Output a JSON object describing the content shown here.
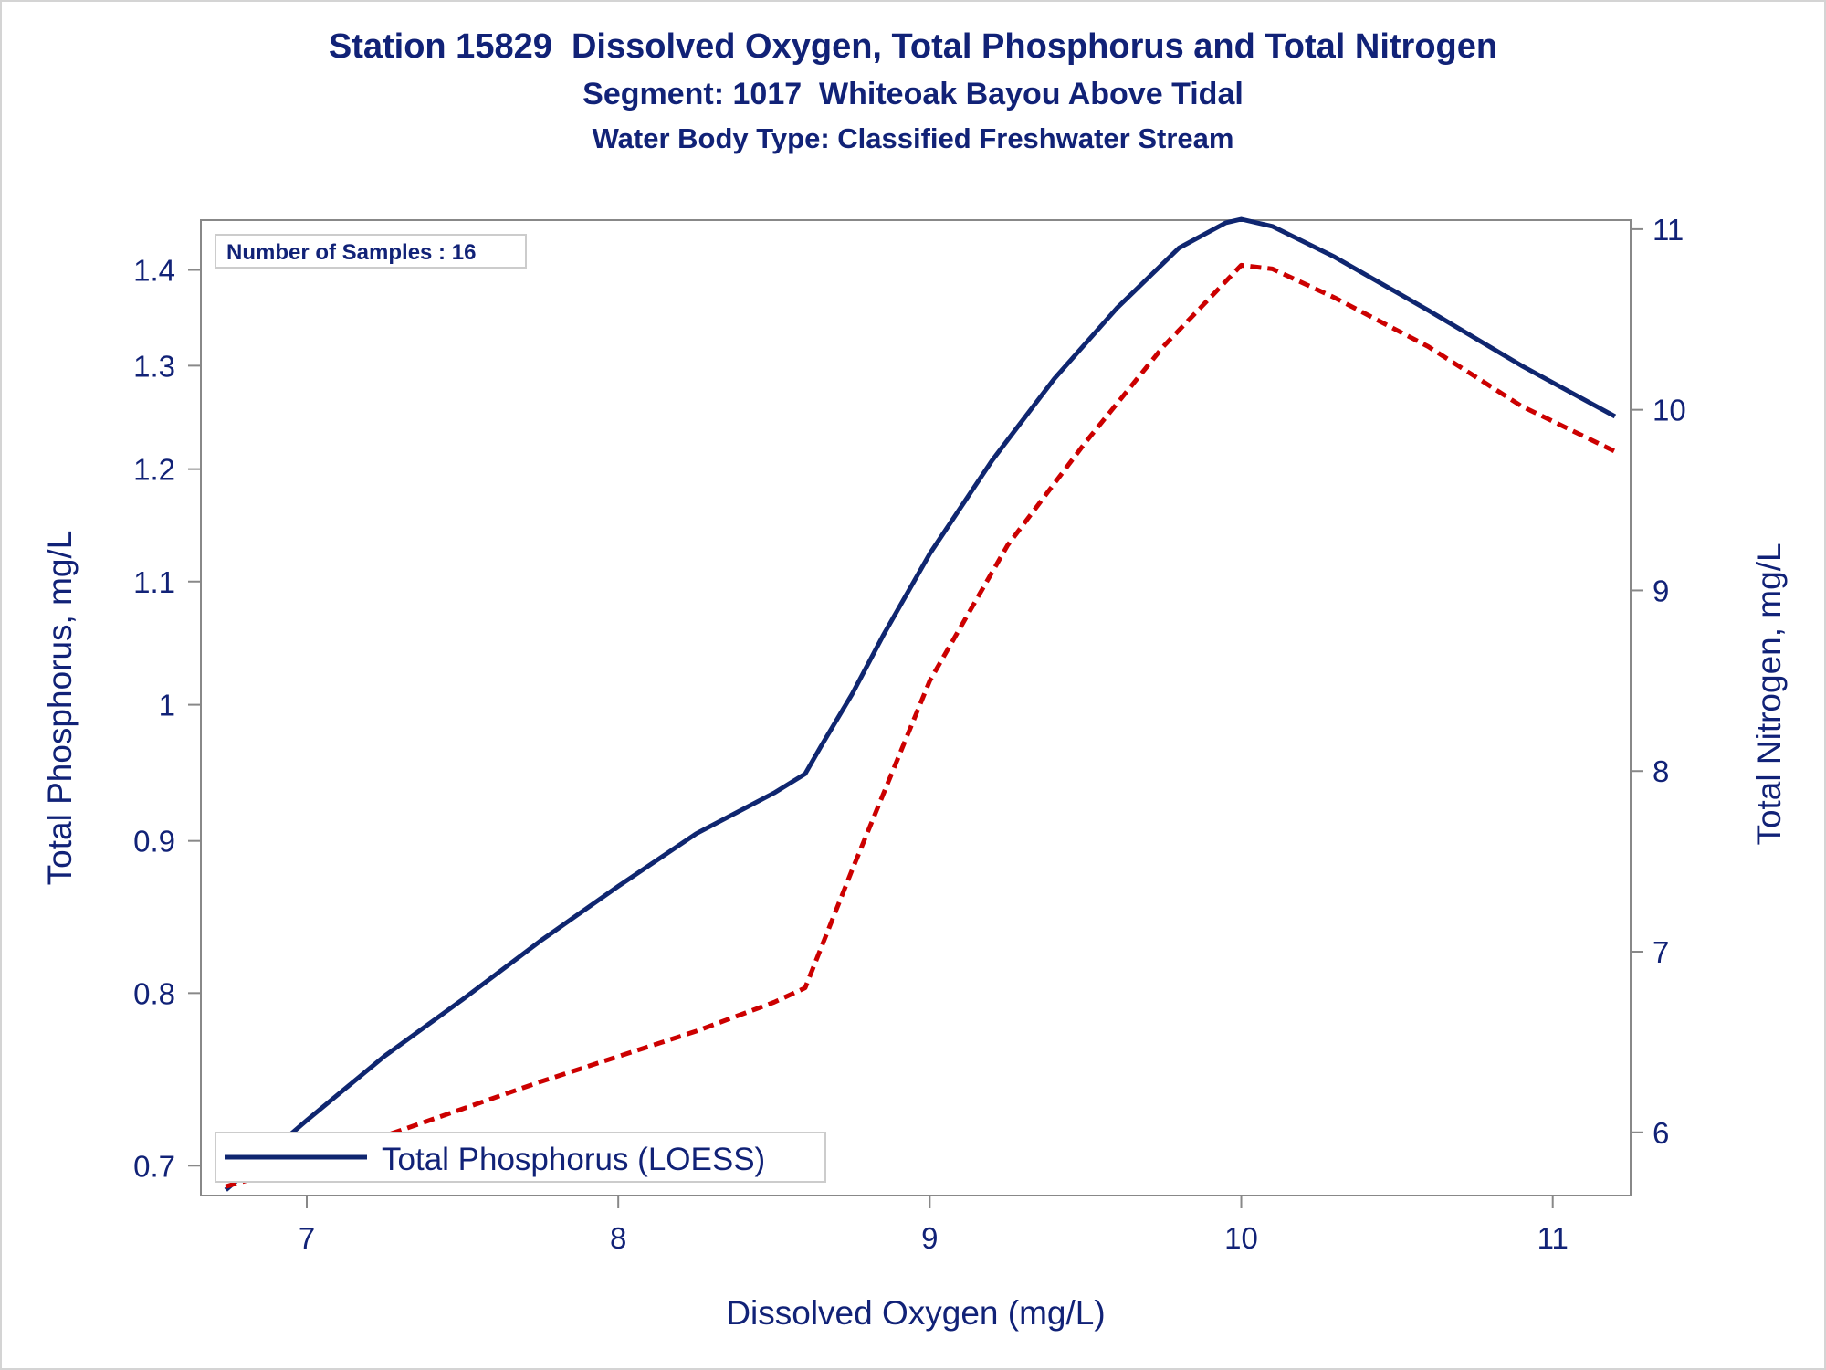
{
  "header": {
    "title": "Station 15829  Dissolved Oxygen, Total Phosphorus and Total Nitrogen",
    "subtitle": "Segment: 1017  Whiteoak Bayou Above Tidal",
    "subtitle2": "Water Body Type: Classified Freshwater Stream"
  },
  "chart_data": {
    "type": "line",
    "title": "Station 15829  Dissolved Oxygen, Total Phosphorus and Total Nitrogen",
    "subtitle": "Segment: 1017  Whiteoak Bayou Above Tidal",
    "xlabel": "Dissolved Oxygen (mg/L)",
    "ylabel": "Total Phosphorus, mg/L",
    "y2label": "Total Nitrogen, mg/L",
    "xlim": [
      6.66,
      11.25
    ],
    "ylim": [
      0.684,
      1.455
    ],
    "yscale": "log",
    "y2lim": [
      5.65,
      11.05
    ],
    "x_ticks": [
      7,
      8,
      9,
      10,
      11
    ],
    "y_ticks": [
      0.7,
      0.8,
      0.9,
      1,
      1.1,
      1.2,
      1.3,
      1.4
    ],
    "y2_ticks": [
      6,
      7,
      8,
      9,
      10,
      11
    ],
    "inset_label": "Number of Samples : 16",
    "legend": {
      "placement": "bottom-left",
      "label": "Total Phosphorus (LOESS)"
    },
    "grid": false,
    "colors": {
      "text": "#112277",
      "phosphorus": "#0f2670",
      "nitrogen": "#cc0000",
      "axis": "#888888"
    },
    "series": [
      {
        "name": "Total Phosphorus (LOESS)",
        "axis": "left",
        "style": "solid",
        "x": [
          6.74,
          7.0,
          7.25,
          7.5,
          7.75,
          8.0,
          8.25,
          8.5,
          8.6,
          8.65,
          8.75,
          8.85,
          9.0,
          9.2,
          9.4,
          9.6,
          9.8,
          9.95,
          10.0,
          10.1,
          10.3,
          10.6,
          10.9,
          11.2
        ],
        "y": [
          0.687,
          0.725,
          0.762,
          0.796,
          0.833,
          0.869,
          0.905,
          0.934,
          0.948,
          0.968,
          1.008,
          1.055,
          1.124,
          1.208,
          1.287,
          1.359,
          1.424,
          1.452,
          1.456,
          1.448,
          1.414,
          1.357,
          1.3,
          1.25
        ]
      },
      {
        "name": "",
        "axis": "right",
        "style": "dashed",
        "x": [
          6.74,
          7.0,
          7.25,
          7.5,
          7.75,
          8.0,
          8.25,
          8.5,
          8.6,
          8.75,
          9.0,
          9.25,
          9.5,
          9.75,
          10.0,
          10.1,
          10.3,
          10.6,
          10.9,
          11.2
        ],
        "y": [
          5.7,
          5.83,
          5.98,
          6.13,
          6.28,
          6.42,
          6.56,
          6.72,
          6.8,
          7.45,
          8.5,
          9.25,
          9.82,
          10.35,
          10.8,
          10.78,
          10.62,
          10.35,
          10.02,
          9.77
        ]
      }
    ]
  }
}
